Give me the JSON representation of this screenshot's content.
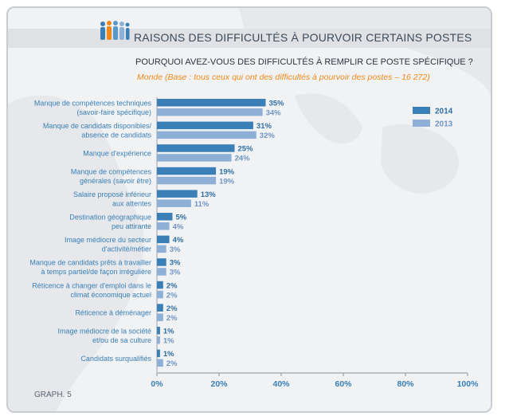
{
  "header": {
    "title": "RAISONS DES DIFFICULTÉS À POURVOIR CERTAINS POSTES",
    "question": "POURQUOI AVEZ-VOUS DES DIFFICULTÉS À REMPLIR CE POSTE SPÉCIFIQUE ?",
    "subtitle": "Monde (Base : tous ceux qui ont des difficultés à pourvoir des postes – 16 272)"
  },
  "footer": {
    "label": "GRAPH. 5"
  },
  "colors": {
    "series_2014": "#3a7fb5",
    "series_2013": "#8fb0d6",
    "accent": "#f08a1c"
  },
  "chart_data": {
    "type": "bar",
    "orientation": "horizontal",
    "categories": [
      [
        "Manque de compétences techniques",
        "(savoir-faire spécifique)"
      ],
      [
        "Manque de candidats disponibles/",
        "absence de candidats"
      ],
      [
        "Manque d'expérience"
      ],
      [
        "Manque de compétences",
        "générales (savoir être)"
      ],
      [
        "Salaire proposé inférieur",
        "aux attentes"
      ],
      [
        "Destination géographique",
        "peu attirante"
      ],
      [
        "Image médiocre du secteur",
        "d'activité/métier"
      ],
      [
        "Manque de candidats prêts à travailler",
        "à temps partiel/de façon irrégulière"
      ],
      [
        "Réticence à changer d'emploi dans le",
        "climat économique actuel"
      ],
      [
        "Réticence à déménager"
      ],
      [
        "Image médiocre de la société",
        "et/ou de sa culture"
      ],
      [
        "Candidats surqualifiés"
      ]
    ],
    "series": [
      {
        "name": "2014",
        "values": [
          35,
          31,
          25,
          19,
          13,
          5,
          4,
          3,
          2,
          2,
          1,
          1
        ]
      },
      {
        "name": "2013",
        "values": [
          34,
          32,
          24,
          19,
          11,
          4,
          3,
          3,
          2,
          2,
          1,
          2
        ]
      }
    ],
    "xlim": [
      0,
      100
    ],
    "xticks": [
      0,
      20,
      40,
      60,
      80,
      100
    ],
    "value_suffix": "%",
    "legend_position": "top-right",
    "grid": false
  }
}
